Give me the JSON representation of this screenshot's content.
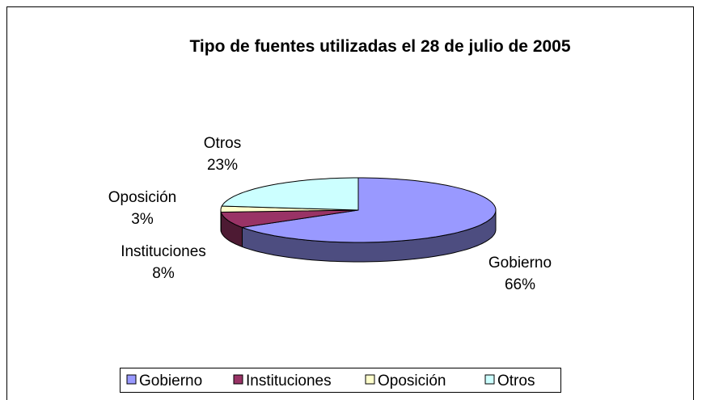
{
  "chart_data": {
    "type": "pie3d",
    "title": "Tipo de fuentes utilizadas el 28 de julio de 2005",
    "categories": [
      "Gobierno",
      "Instituciones",
      "Oposición",
      "Otros"
    ],
    "values": [
      66,
      8,
      3,
      23
    ],
    "value_labels": [
      "66%",
      "8%",
      "3%",
      "23%"
    ],
    "colors": [
      "#9999ff",
      "#993366",
      "#ffffcc",
      "#ccffff"
    ],
    "legend": "bottom"
  }
}
